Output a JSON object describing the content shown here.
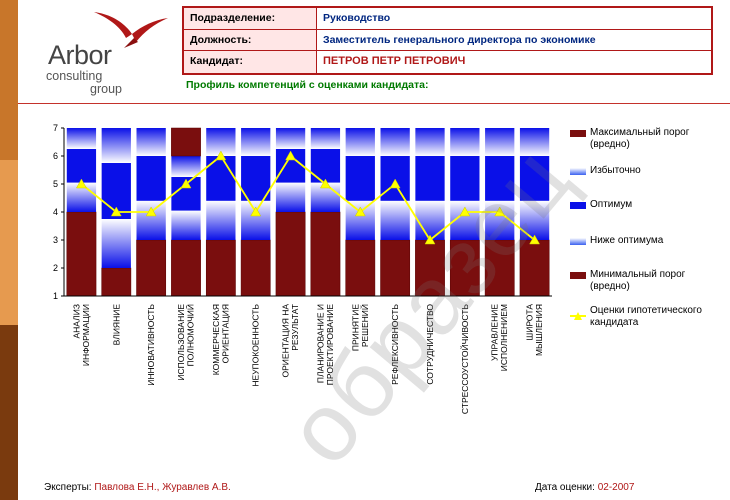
{
  "logo": {
    "brand": "Arbor",
    "line2": "consulting",
    "line3": "group"
  },
  "header": {
    "rows": [
      {
        "label": "Подразделение:",
        "value": "Руководство"
      },
      {
        "label": "Должность:",
        "value": "Заместитель генерального директора по экономике"
      },
      {
        "label": "Кандидат:",
        "value": "ПЕТРОВ ПЕТР ПЕТРОВИЧ"
      }
    ]
  },
  "subtitle": "Профиль компетенций с оценками кандидата:",
  "colors": {
    "dark_red": "#7a0e0e",
    "optimum": "#0a10e8",
    "candidate_line": "#ffff00",
    "header_border": "#b01818"
  },
  "chart_data": {
    "type": "bar",
    "title": "",
    "ylim": [
      1,
      7
    ],
    "yticks": [
      "1",
      "2",
      "3",
      "4",
      "5",
      "6",
      "7"
    ],
    "categories": [
      "АНАЛИЗ ИНФОРМАЦИИ",
      "ВЛИЯНИЕ",
      "ИННОВАТИВНОСТЬ",
      "ИСПОЛЬЗОВАНИЕ ПОЛНОМОЧИЙ",
      "КОММЕРЧЕСКАЯ ОРИЕНТАЦИЯ",
      "НЕУПОКОЕННОСТЬ",
      "ОРИЕНТАЦИЯ НА РЕЗУЛЬТАТ",
      "ПЛАНИРОВАНИЕ И ПРОЕКТИРОВАНИЕ",
      "ПРИНЯТИЕ РЕШЕНИЙ",
      "РЕФЛЕКСИВНОСТЬ",
      "СОТРУДНИЧЕСТВО",
      "СТРЕССОУСТОЙЧИВОСТЬ",
      "УПРАВЛЕНИЕ ИСПОЛНЕНИЕМ",
      "ШИРОТА МЫШЛЕНИЯ"
    ],
    "series": [
      {
        "name": "Минимальный порог (вредно)",
        "values": [
          4,
          2,
          3,
          3,
          3,
          3,
          4,
          4,
          3,
          3,
          3,
          3,
          3,
          3
        ]
      },
      {
        "name": "Максимальный порог (вредно)",
        "values": [
          7,
          7,
          7,
          6,
          7,
          7,
          7,
          7,
          7,
          7,
          7,
          7,
          7,
          7
        ]
      },
      {
        "name": "Оценки гипотетического кандидата",
        "values": [
          5,
          4,
          4,
          5,
          6,
          4,
          6,
          5,
          4,
          5,
          3,
          4,
          4,
          3
        ]
      }
    ],
    "legend": [
      {
        "label": "Максимальный порог (вредно)",
        "swatch": "dark"
      },
      {
        "label": "Избыточно",
        "swatch": "light"
      },
      {
        "label": "Оптимум",
        "swatch": "blue"
      },
      {
        "label": "Ниже оптимума",
        "swatch": "light"
      },
      {
        "label": "Минимальный порог (вредно)",
        "swatch": "dark"
      },
      {
        "label": "Оценки гипотетического кандидата",
        "swatch": "line"
      }
    ],
    "legend_position": "right"
  },
  "footer": {
    "experts_label": "Эксперты:",
    "experts_value": "Павлова Е.Н., Журавлев А.В.",
    "date_label": "Дата оценки:",
    "date_value": "02-2007"
  },
  "watermark": "образец"
}
